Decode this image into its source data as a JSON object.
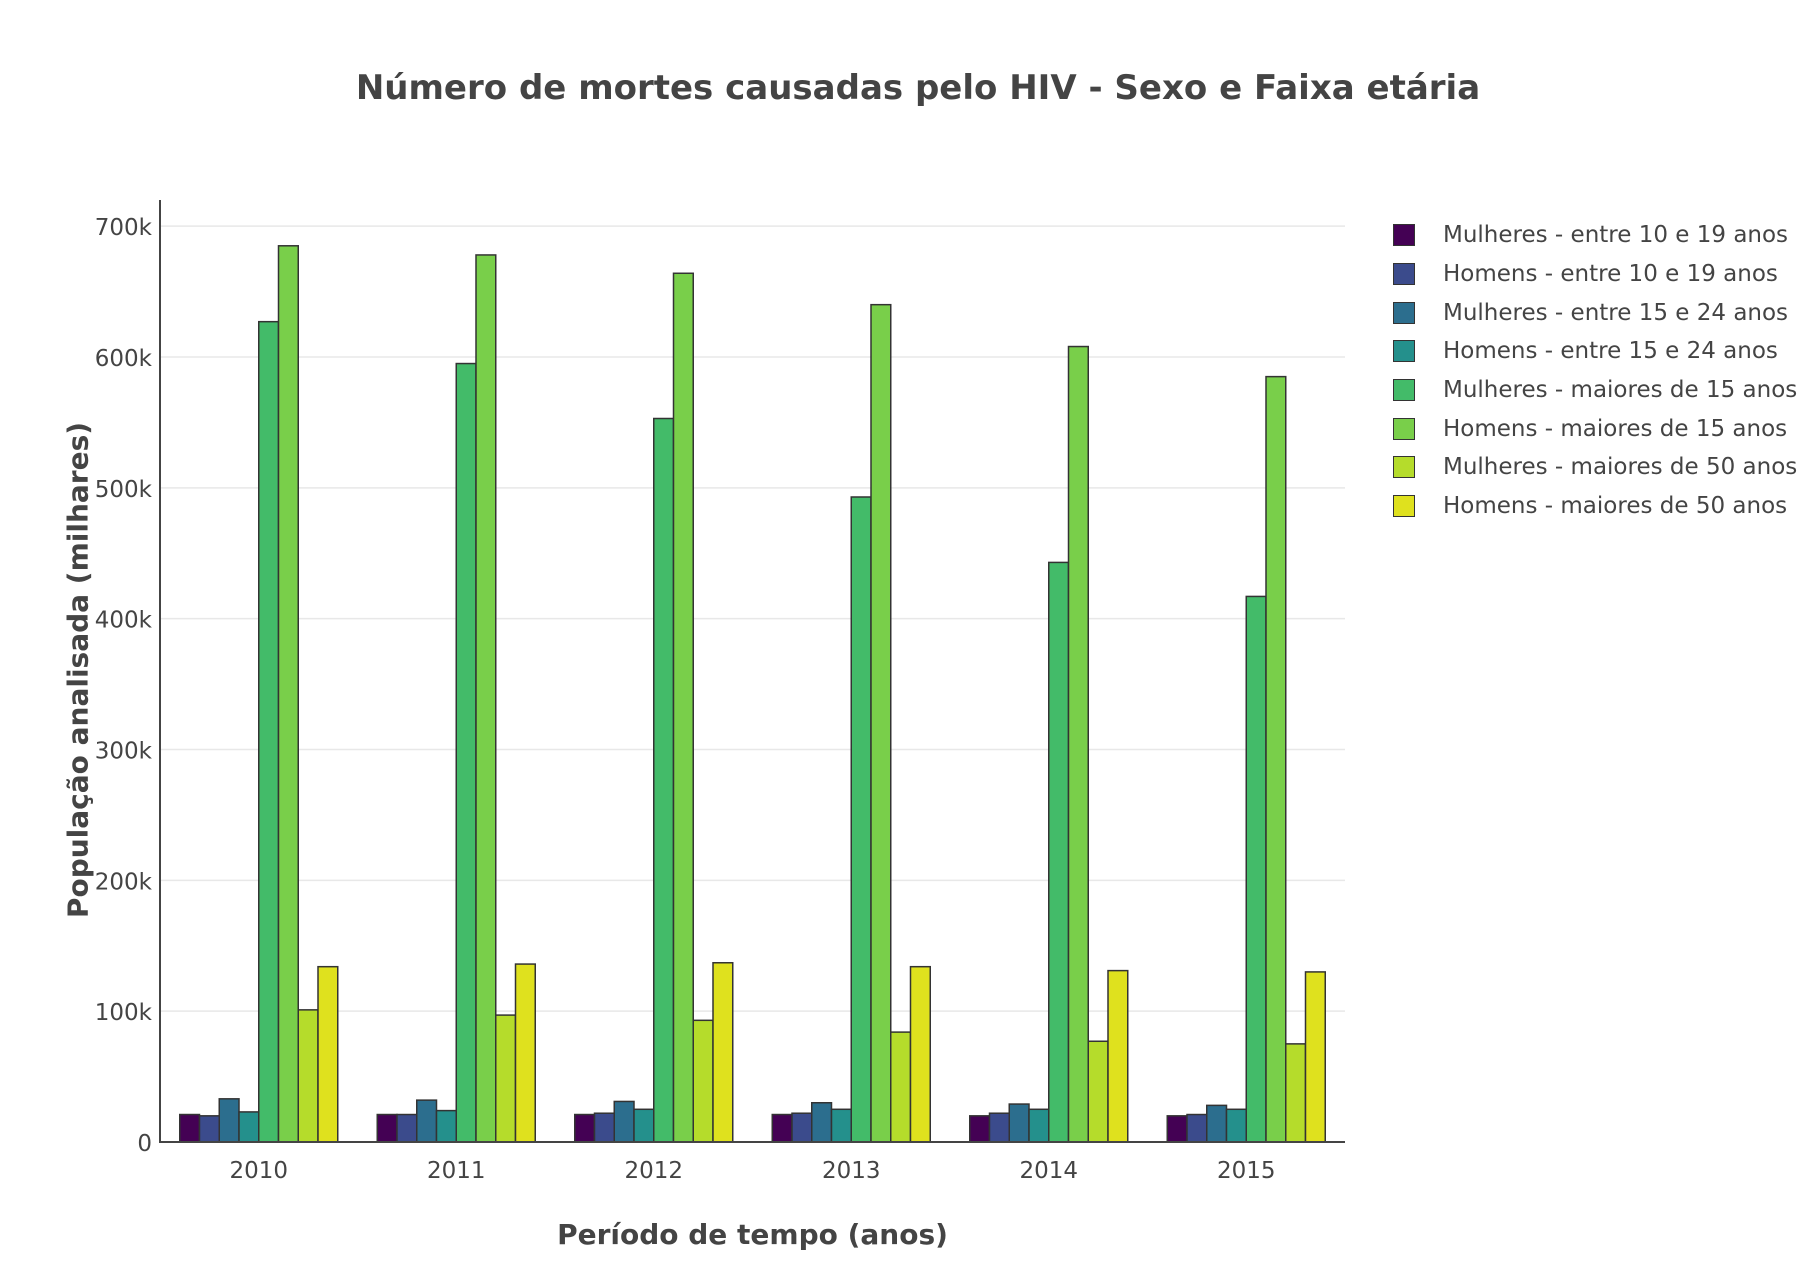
{
  "chart_data": {
    "type": "bar",
    "title": "Número de mortes causadas pelo HIV - Sexo e Faixa etária",
    "xlabel": "Período de tempo (anos)",
    "ylabel": "População analisada (milhares)",
    "categories": [
      "2010",
      "2011",
      "2012",
      "2013",
      "2014",
      "2015"
    ],
    "ylim": [
      0,
      720000
    ],
    "yticks": [
      0,
      100000,
      200000,
      300000,
      400000,
      500000,
      600000,
      700000
    ],
    "ytick_labels": [
      "0",
      "100k",
      "200k",
      "300k",
      "400k",
      "500k",
      "600k",
      "700k"
    ],
    "grid": true,
    "legend_position": "right",
    "series": [
      {
        "name": "Mulheres - entre 10 e 19 anos",
        "color": "#440154",
        "values": [
          21000,
          21000,
          21000,
          21000,
          20000,
          20000
        ]
      },
      {
        "name": "Homens - entre 10 e 19 anos",
        "color": "#3b4b8c",
        "values": [
          20000,
          21000,
          22000,
          22000,
          22000,
          21000
        ]
      },
      {
        "name": "Mulheres - entre 15 e 24 anos",
        "color": "#2c6e8e",
        "values": [
          33000,
          32000,
          31000,
          30000,
          29000,
          28000
        ]
      },
      {
        "name": "Homens - entre 15 e 24 anos",
        "color": "#24908c",
        "values": [
          23000,
          24000,
          25000,
          25000,
          25000,
          25000
        ]
      },
      {
        "name": "Mulheres - maiores de 15 anos",
        "color": "#43bb69",
        "values": [
          627000,
          595000,
          553000,
          493000,
          443000,
          417000
        ]
      },
      {
        "name": "Homens - maiores de 15 anos",
        "color": "#79cf4a",
        "values": [
          685000,
          678000,
          664000,
          640000,
          608000,
          585000
        ]
      },
      {
        "name": "Mulheres - maiores de 50 anos",
        "color": "#b5dc2b",
        "values": [
          101000,
          97000,
          93000,
          84000,
          77000,
          75000
        ]
      },
      {
        "name": "Homens - maiores de 50 anos",
        "color": "#dfe11e",
        "values": [
          134000,
          136000,
          137000,
          134000,
          131000,
          130000
        ]
      }
    ]
  }
}
